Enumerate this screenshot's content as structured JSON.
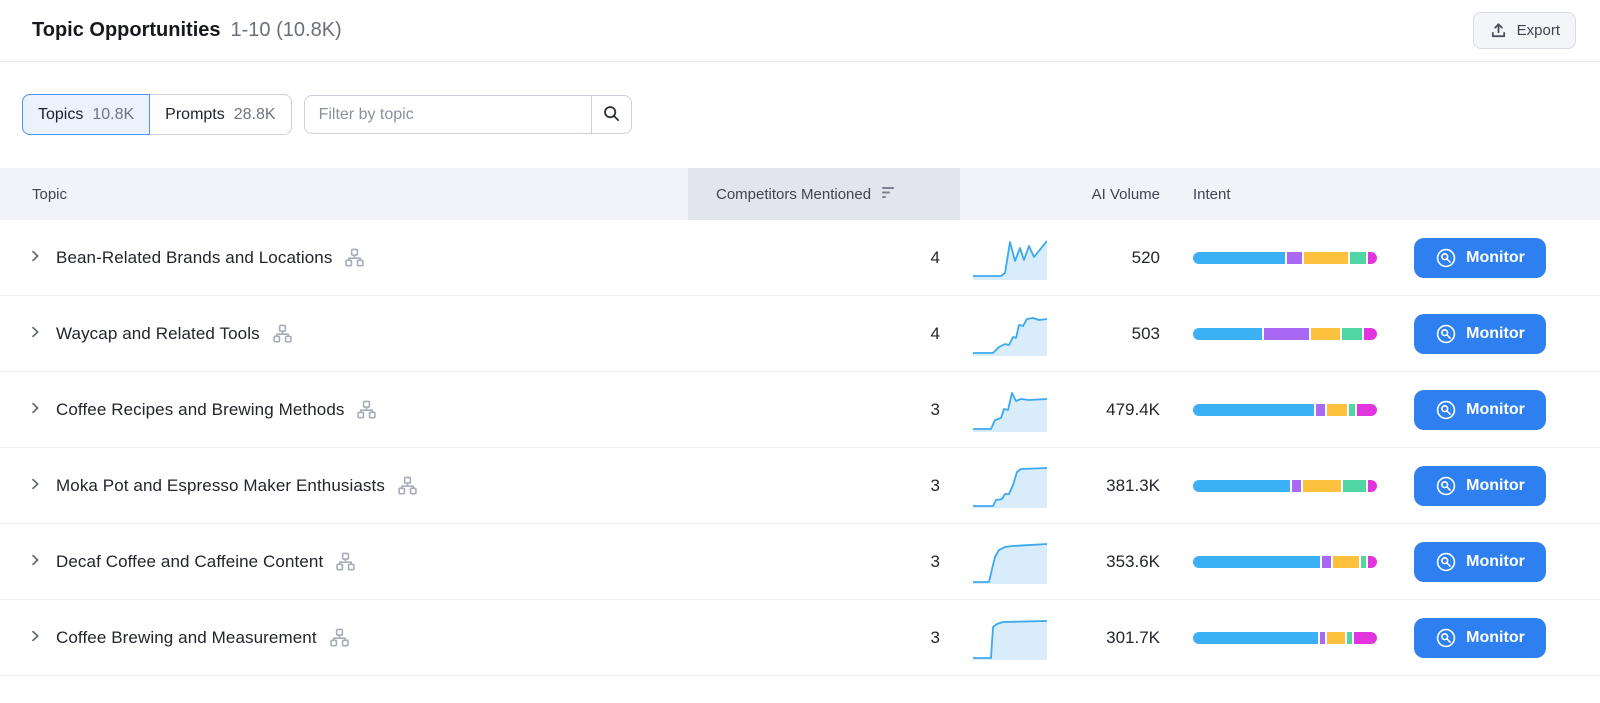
{
  "header": {
    "title": "Topic Opportunities",
    "range": "1-10 (10.8K)",
    "export_label": "Export"
  },
  "toolbar": {
    "tabs": [
      {
        "label": "Topics",
        "count": "10.8K",
        "active": true
      },
      {
        "label": "Prompts",
        "count": "28.8K",
        "active": false
      }
    ],
    "filter_placeholder": "Filter by topic"
  },
  "table": {
    "columns": {
      "topic": "Topic",
      "competitors": "Competitors Mentioned",
      "ai_volume": "AI Volume",
      "intent": "Intent"
    },
    "sort": {
      "column": "competitors",
      "direction": "descending"
    },
    "monitor_label": "Monitor",
    "rows": [
      {
        "topic": "Bean-Related Brands and Locations",
        "competitors": "4",
        "ai_volume": "520",
        "spark": [
          [
            0,
            41
          ],
          [
            28,
            41
          ],
          [
            32,
            38
          ],
          [
            37,
            7
          ],
          [
            42,
            26
          ],
          [
            47,
            13
          ],
          [
            51,
            25
          ],
          [
            56,
            11
          ],
          [
            61,
            22
          ],
          [
            74,
            6
          ]
        ],
        "intent": [
          {
            "c": "blue",
            "pct": 52
          },
          {
            "c": "purple",
            "pct": 9
          },
          {
            "c": "yellow",
            "pct": 25
          },
          {
            "c": "green",
            "pct": 9
          },
          {
            "c": "magenta",
            "pct": 5
          }
        ]
      },
      {
        "topic": "Waycap and Related Tools",
        "competitors": "4",
        "ai_volume": "503",
        "spark": [
          [
            0,
            42
          ],
          [
            20,
            42
          ],
          [
            26,
            36
          ],
          [
            32,
            33
          ],
          [
            36,
            34
          ],
          [
            40,
            26
          ],
          [
            43,
            27
          ],
          [
            46,
            14
          ],
          [
            50,
            15
          ],
          [
            54,
            8
          ],
          [
            60,
            7
          ],
          [
            66,
            9
          ],
          [
            74,
            8
          ]
        ],
        "intent": [
          {
            "c": "blue",
            "pct": 38
          },
          {
            "c": "purple",
            "pct": 25
          },
          {
            "c": "yellow",
            "pct": 16
          },
          {
            "c": "green",
            "pct": 11
          },
          {
            "c": "magenta",
            "pct": 7
          }
        ]
      },
      {
        "topic": "Coffee Recipes and Brewing Methods",
        "competitors": "3",
        "ai_volume": "479.4K",
        "spark": [
          [
            0,
            42
          ],
          [
            18,
            42
          ],
          [
            22,
            33
          ],
          [
            28,
            31
          ],
          [
            31,
            22
          ],
          [
            35,
            23
          ],
          [
            39,
            6
          ],
          [
            43,
            14
          ],
          [
            48,
            12
          ],
          [
            56,
            13
          ],
          [
            74,
            12
          ]
        ],
        "intent": [
          {
            "c": "blue",
            "pct": 66
          },
          {
            "c": "purple",
            "pct": 5
          },
          {
            "c": "yellow",
            "pct": 11
          },
          {
            "c": "green",
            "pct": 3
          },
          {
            "c": "magenta",
            "pct": 11
          }
        ]
      },
      {
        "topic": "Moka Pot and Espresso Maker Enthusiasts",
        "competitors": "3",
        "ai_volume": "381.3K",
        "spark": [
          [
            0,
            43
          ],
          [
            20,
            43
          ],
          [
            23,
            37
          ],
          [
            29,
            36
          ],
          [
            32,
            31
          ],
          [
            36,
            31
          ],
          [
            40,
            22
          ],
          [
            44,
            9
          ],
          [
            48,
            6
          ],
          [
            74,
            5
          ]
        ],
        "intent": [
          {
            "c": "blue",
            "pct": 54
          },
          {
            "c": "purple",
            "pct": 5
          },
          {
            "c": "yellow",
            "pct": 21
          },
          {
            "c": "green",
            "pct": 13
          },
          {
            "c": "magenta",
            "pct": 5
          }
        ]
      },
      {
        "topic": "Decaf Coffee and Caffeine Content",
        "competitors": "3",
        "ai_volume": "353.6K",
        "spark": [
          [
            0,
            43
          ],
          [
            16,
            43
          ],
          [
            19,
            30
          ],
          [
            22,
            18
          ],
          [
            26,
            11
          ],
          [
            32,
            8
          ],
          [
            40,
            7
          ],
          [
            74,
            5
          ]
        ],
        "intent": [
          {
            "c": "blue",
            "pct": 72
          },
          {
            "c": "purple",
            "pct": 5
          },
          {
            "c": "yellow",
            "pct": 15
          },
          {
            "c": "green",
            "pct": 3
          },
          {
            "c": "magenta",
            "pct": 5
          }
        ]
      },
      {
        "topic": "Coffee Brewing and Measurement",
        "competitors": "3",
        "ai_volume": "301.7K",
        "spark": [
          [
            0,
            43
          ],
          [
            18,
            43
          ],
          [
            20,
            12
          ],
          [
            24,
            9
          ],
          [
            30,
            7
          ],
          [
            74,
            6
          ]
        ],
        "intent": [
          {
            "c": "blue",
            "pct": 71
          },
          {
            "c": "purple",
            "pct": 3
          },
          {
            "c": "yellow",
            "pct": 10
          },
          {
            "c": "green",
            "pct": 3
          },
          {
            "c": "magenta",
            "pct": 13
          }
        ]
      }
    ]
  },
  "colors": {
    "button_blue": "#2e80f1",
    "tab_active_border": "#4f94f0",
    "tab_active_bg": "#e9f2fd",
    "spark_line": "#3aa9ee",
    "spark_fill": "#d9ecfa",
    "intent": {
      "blue": "#3cb0f4",
      "purple": "#a968f2",
      "yellow": "#fdc13e",
      "green": "#4fd6a4",
      "magenta": "#e135dd"
    }
  },
  "icons": {
    "export": "upload-icon",
    "filter": "search-icon",
    "sort": "sort-descending-icon",
    "row_expand": "chevron-right-icon",
    "topic_extra": "sitemap-icon",
    "monitor": "magnifier-circle-icon"
  }
}
